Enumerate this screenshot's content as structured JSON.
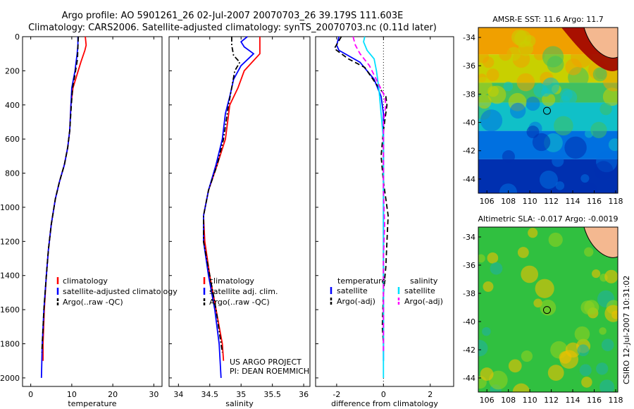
{
  "header": {
    "title_line1": "Argo profile: AO 5901261_26 02-Jul-2007 20070703_26 39.179S 111.603E",
    "title_line2": "Climatology: CARS2006. Satellite-adjusted climatology: synTS_20070703.nc (0.11d later)"
  },
  "side_label": "CSIRO 12-Jul-2007 10:31:02",
  "chart_data": [
    {
      "type": "line",
      "id": "temperature",
      "xlabel": "temperature",
      "ylabel": "",
      "xlim": [
        -2,
        32
      ],
      "ylim": [
        2050,
        0
      ],
      "xticks": [
        0,
        10,
        20,
        30
      ],
      "yticks": [
        0,
        200,
        400,
        600,
        800,
        1000,
        1200,
        1400,
        1600,
        1800,
        2000
      ],
      "legend": [
        "climatology",
        "satellite-adjusted climatology",
        "Argo(..raw -QC)"
      ],
      "series": [
        {
          "name": "climatology",
          "color": "#ff0000",
          "dash": "solid",
          "points": [
            [
              13.3,
              0
            ],
            [
              13.5,
              50
            ],
            [
              13.2,
              80
            ],
            [
              12.2,
              150
            ],
            [
              10.3,
              300
            ],
            [
              9.8,
              400
            ],
            [
              9.5,
              550
            ],
            [
              9.0,
              650
            ],
            [
              8.2,
              750
            ],
            [
              7.0,
              850
            ],
            [
              6.0,
              950
            ],
            [
              5.0,
              1100
            ],
            [
              4.3,
              1250
            ],
            [
              3.8,
              1400
            ],
            [
              3.3,
              1600
            ],
            [
              3.0,
              1800
            ],
            [
              3.0,
              1900
            ]
          ]
        },
        {
          "name": "satellite-adjusted climatology",
          "color": "#0000ff",
          "dash": "solid",
          "points": [
            [
              11.5,
              0
            ],
            [
              11.5,
              50
            ],
            [
              11.3,
              100
            ],
            [
              10.8,
              200
            ],
            [
              10.0,
              300
            ],
            [
              9.8,
              400
            ],
            [
              9.5,
              550
            ],
            [
              9.0,
              650
            ],
            [
              8.2,
              750
            ],
            [
              7.0,
              850
            ],
            [
              6.0,
              950
            ],
            [
              5.0,
              1100
            ],
            [
              4.3,
              1250
            ],
            [
              3.8,
              1400
            ],
            [
              3.2,
              1600
            ],
            [
              2.8,
              1800
            ],
            [
              2.6,
              2000
            ]
          ]
        },
        {
          "name": "Argo(..raw -QC)",
          "color": "#000000",
          "dash": "dash",
          "points": [
            [
              11.6,
              0
            ],
            [
              11.5,
              60
            ],
            [
              11.4,
              130
            ],
            [
              10.8,
              220
            ],
            [
              10.2,
              300
            ],
            [
              9.9,
              400
            ],
            [
              9.5,
              550
            ],
            [
              9.0,
              650
            ],
            [
              8.2,
              750
            ],
            [
              7.0,
              850
            ],
            [
              6.0,
              950
            ],
            [
              5.0,
              1100
            ],
            [
              4.3,
              1250
            ],
            [
              3.8,
              1400
            ],
            [
              3.2,
              1600
            ],
            [
              2.8,
              1800
            ],
            [
              2.7,
              1850
            ]
          ]
        }
      ]
    },
    {
      "type": "line",
      "id": "salinity",
      "xlabel": "salinity",
      "ylabel": "",
      "xlim": [
        33.85,
        36.1
      ],
      "ylim": [
        2050,
        0
      ],
      "xticks": [
        34,
        34.5,
        35,
        35.5,
        36
      ],
      "legend": [
        "climatology",
        "satellite adj. clim.",
        "Argo(..raw -QC)"
      ],
      "series": [
        {
          "name": "climatology",
          "color": "#ff0000",
          "dash": "solid",
          "points": [
            [
              35.3,
              0
            ],
            [
              35.3,
              50
            ],
            [
              35.3,
              100
            ],
            [
              35.05,
              200
            ],
            [
              34.95,
              300
            ],
            [
              34.82,
              400
            ],
            [
              34.75,
              600
            ],
            [
              34.62,
              750
            ],
            [
              34.48,
              900
            ],
            [
              34.4,
              1050
            ],
            [
              34.42,
              1200
            ],
            [
              34.5,
              1400
            ],
            [
              34.6,
              1600
            ],
            [
              34.7,
              1800
            ],
            [
              34.72,
              1900
            ]
          ]
        },
        {
          "name": "satellite adj. clim.",
          "color": "#0000ff",
          "dash": "solid",
          "points": [
            [
              35.1,
              0
            ],
            [
              35.0,
              30
            ],
            [
              35.05,
              60
            ],
            [
              35.2,
              100
            ],
            [
              35.0,
              170
            ],
            [
              34.88,
              250
            ],
            [
              34.82,
              350
            ],
            [
              34.75,
              450
            ],
            [
              34.7,
              600
            ],
            [
              34.6,
              750
            ],
            [
              34.48,
              900
            ],
            [
              34.4,
              1050
            ],
            [
              34.4,
              1200
            ],
            [
              34.48,
              1400
            ],
            [
              34.58,
              1600
            ],
            [
              34.65,
              1800
            ],
            [
              34.68,
              2000
            ]
          ]
        },
        {
          "name": "Argo(..raw -QC)",
          "color": "#000000",
          "dash": "dashdot",
          "points": [
            [
              34.85,
              0
            ],
            [
              34.85,
              50
            ],
            [
              34.88,
              110
            ],
            [
              34.98,
              150
            ],
            [
              34.9,
              200
            ],
            [
              34.85,
              300
            ],
            [
              34.8,
              400
            ],
            [
              34.72,
              600
            ],
            [
              34.62,
              750
            ],
            [
              34.48,
              900
            ],
            [
              34.4,
              1050
            ],
            [
              34.4,
              1200
            ],
            [
              34.5,
              1400
            ],
            [
              34.6,
              1600
            ],
            [
              34.68,
              1800
            ],
            [
              34.7,
              1850
            ]
          ]
        }
      ]
    },
    {
      "type": "line",
      "id": "difference",
      "xlabel": "difference from climatology",
      "ylabel": "",
      "xlim": [
        -2.9,
        3
      ],
      "ylim": [
        2050,
        0
      ],
      "xticks": [
        -2,
        0,
        2
      ],
      "zero_line": 0,
      "legend_headers": [
        "temperature",
        "salinity"
      ],
      "legend": [
        "satellite",
        "Argo(-adj)",
        "satellite",
        "Argo(-adj)"
      ],
      "series": [
        {
          "name": "satellite",
          "group": "temperature",
          "color": "#0000ff",
          "dash": "solid",
          "points": [
            [
              -1.9,
              0
            ],
            [
              -2.0,
              50
            ],
            [
              -1.9,
              80
            ],
            [
              -1.0,
              150
            ],
            [
              -0.4,
              250
            ],
            [
              -0.1,
              350
            ],
            [
              0.0,
              450
            ],
            [
              0.0,
              700
            ],
            [
              0.0,
              1000
            ],
            [
              0.0,
              1200
            ],
            [
              0.0,
              1500
            ],
            [
              0.0,
              1800
            ],
            [
              0.0,
              1900
            ]
          ]
        },
        {
          "name": "Argo(-adj)",
          "group": "temperature",
          "color": "#000000",
          "dash": "dash",
          "points": [
            [
              -1.8,
              0
            ],
            [
              -2.1,
              70
            ],
            [
              -1.5,
              130
            ],
            [
              -0.8,
              180
            ],
            [
              -0.3,
              280
            ],
            [
              0.1,
              350
            ],
            [
              0.15,
              400
            ],
            [
              0.0,
              550
            ],
            [
              -0.1,
              700
            ],
            [
              0.0,
              850
            ],
            [
              0.1,
              950
            ],
            [
              0.2,
              1050
            ],
            [
              0.15,
              1200
            ],
            [
              0.1,
              1350
            ],
            [
              0.0,
              1500
            ],
            [
              -0.05,
              1700
            ],
            [
              0.0,
              1800
            ]
          ]
        },
        {
          "name": "satellite",
          "group": "salinity",
          "color": "#00e0ff",
          "dash": "solid",
          "points": [
            [
              -0.8,
              0
            ],
            [
              -0.85,
              30
            ],
            [
              -0.7,
              80
            ],
            [
              -0.4,
              130
            ],
            [
              -0.3,
              200
            ],
            [
              -0.2,
              300
            ],
            [
              -0.1,
              450
            ],
            [
              0.0,
              600
            ],
            [
              0.0,
              800
            ],
            [
              0.0,
              1000
            ],
            [
              0.0,
              1200
            ],
            [
              0.0,
              1500
            ],
            [
              0.0,
              1800
            ],
            [
              0.0,
              2000
            ]
          ]
        },
        {
          "name": "Argo(-adj)",
          "group": "salinity",
          "color": "#ff00ff",
          "dash": "dash",
          "points": [
            [
              -1.3,
              0
            ],
            [
              -1.2,
              50
            ],
            [
              -1.0,
              100
            ],
            [
              -0.6,
              170
            ],
            [
              -0.2,
              280
            ],
            [
              0.05,
              350
            ],
            [
              0.1,
              400
            ],
            [
              0.0,
              500
            ],
            [
              0.0,
              700
            ],
            [
              0.0,
              900
            ],
            [
              0.05,
              1100
            ],
            [
              0.0,
              1300
            ],
            [
              0.0,
              1500
            ],
            [
              0.0,
              1700
            ],
            [
              0.0,
              1850
            ]
          ]
        }
      ]
    },
    {
      "type": "heatmap",
      "id": "sst-map",
      "title": "AMSR-E SST: 11.6 Argo: 11.7",
      "xlim": [
        105.2,
        118.2
      ],
      "ylim": [
        -45,
        -33.3
      ],
      "xticks": [
        106,
        108,
        110,
        112,
        114,
        116,
        118
      ],
      "yticks": [
        -34,
        -36,
        -38,
        -40,
        -42,
        -44
      ],
      "marker": [
        111.6,
        -39.18
      ],
      "bands": [
        {
          "ymax": -33.3,
          "ymin": -35.2,
          "color": "#f0a000"
        },
        {
          "ymax": -35.2,
          "ymin": -37.2,
          "color": "#c8d000"
        },
        {
          "ymax": -37.2,
          "ymin": -38.6,
          "color": "#40c060"
        },
        {
          "ymax": -38.6,
          "ymin": -40.6,
          "color": "#10c0c8"
        },
        {
          "ymax": -40.6,
          "ymin": -42.6,
          "color": "#0070e0"
        },
        {
          "ymax": -42.6,
          "ymin": -45.0,
          "color": "#0030b0"
        }
      ],
      "land_color": "#f4b890",
      "hot_color": "#a00000"
    },
    {
      "type": "heatmap",
      "id": "sla-map",
      "title": "Altimetric SLA: -0.017 Argo: -0.0019",
      "xlim": [
        105.2,
        118.2
      ],
      "ylim": [
        -45,
        -33.3
      ],
      "xticks": [
        106,
        108,
        110,
        112,
        114,
        116,
        118
      ],
      "yticks": [
        -34,
        -36,
        -38,
        -40,
        -42,
        -44
      ],
      "marker": [
        111.6,
        -39.18
      ],
      "base_color": "#30c040",
      "spot_colors": [
        "#90d020",
        "#20b0a0",
        "#f0c000"
      ],
      "land_color": "#f4b890"
    }
  ],
  "annotation": {
    "line1": "US ARGO PROJECT",
    "line2": "PI: DEAN ROEMMICH"
  }
}
